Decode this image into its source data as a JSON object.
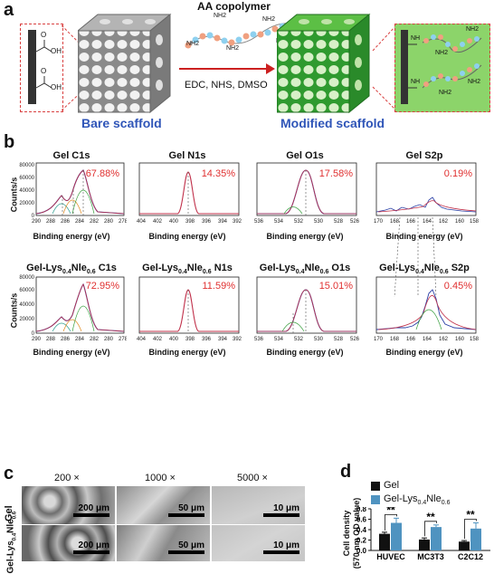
{
  "panel_a": {
    "label": "a",
    "copolymer_title": "AA copolymer",
    "reagents": "EDC, NHS, DMSO",
    "bare_caption": "Bare scaffold",
    "modified_caption": "Modified scaffold",
    "nh2": "NH2",
    "oh": "OH",
    "o": "O",
    "nh": "NH"
  },
  "panel_b": {
    "label": "b",
    "ylabel": "Counts/s",
    "xlabel": "Binding energy (eV)",
    "row1": [
      {
        "title": "Gel C1s",
        "pct": "67.88%",
        "ticks": [
          "290",
          "288",
          "286",
          "284",
          "282",
          "280",
          "278"
        ],
        "yticks": [
          "0",
          "20000",
          "40000",
          "60000",
          "80000"
        ]
      },
      {
        "title": "Gel N1s",
        "pct": "14.35%",
        "ticks": [
          "404",
          "402",
          "400",
          "398",
          "396",
          "394",
          "392"
        ]
      },
      {
        "title": "Gel O1s",
        "pct": "17.58%",
        "ticks": [
          "536",
          "534",
          "532",
          "530",
          "528",
          "526"
        ]
      },
      {
        "title": "Gel S2p",
        "pct": "0.19%",
        "ticks": [
          "170",
          "168",
          "166",
          "164",
          "162",
          "160",
          "158"
        ]
      }
    ],
    "row2": [
      {
        "title_pre": "Gel-Lys",
        "sub1": "0.4",
        "mid": "Nle",
        "sub2": "0.6",
        "title_post": " C1s",
        "pct": "72.95%",
        "ticks": [
          "290",
          "288",
          "286",
          "284",
          "282",
          "280",
          "278"
        ],
        "yticks": [
          "0",
          "20000",
          "40000",
          "60000",
          "80000"
        ]
      },
      {
        "title_pre": "Gel-Lys",
        "sub1": "0.4",
        "mid": "Nle",
        "sub2": "0.6",
        "title_post": " N1s",
        "pct": "11.59%",
        "ticks": [
          "404",
          "402",
          "400",
          "398",
          "396",
          "394",
          "392"
        ]
      },
      {
        "title_pre": "Gel-Lys",
        "sub1": "0.4",
        "mid": "Nle",
        "sub2": "0.6",
        "title_post": " O1s",
        "pct": "15.01%",
        "ticks": [
          "536",
          "534",
          "532",
          "530",
          "528",
          "526"
        ]
      },
      {
        "title_pre": "Gel-Lys",
        "sub1": "0.4",
        "mid": "Nle",
        "sub2": "0.6",
        "title_post": " S2p",
        "pct": "0.45%",
        "ticks": [
          "170",
          "168",
          "166",
          "164",
          "162",
          "160",
          "158"
        ]
      }
    ]
  },
  "panel_c": {
    "label": "c",
    "mags": [
      "200 ×",
      "1000 ×",
      "5000 ×"
    ],
    "row_gel": "Gel",
    "row_mod_pre": "Gel-Lys",
    "row_mod_sub1": "0.4",
    "row_mod_mid": "Nle",
    "row_mod_sub2": "0.6",
    "scalebars": [
      "200 μm",
      "50 μm",
      "10 μm",
      "200 μm",
      "50 μm",
      "10 μm"
    ]
  },
  "panel_d": {
    "label": "d",
    "legend_gel": "Gel",
    "legend_mod_pre": "Gel-Lys",
    "legend_mod_sub1": "0.4",
    "legend_mod_mid": "Nle",
    "legend_mod_sub2": "0.6",
    "ylabel_1": "Cell density",
    "ylabel_2": "(570 nm OD value)",
    "sig": "**"
  },
  "chart_data": {
    "type": "bar",
    "categories": [
      "HUVEC",
      "MC3T3",
      "C2C12"
    ],
    "series": [
      {
        "name": "Gel",
        "values": [
          0.32,
          0.21,
          0.17
        ],
        "errors": [
          0.03,
          0.03,
          0.02
        ],
        "color": "#111111"
      },
      {
        "name": "Gel-Lys0.4Nle0.6",
        "values": [
          0.53,
          0.45,
          0.42
        ],
        "errors": [
          0.09,
          0.04,
          0.11
        ],
        "color": "#4f93c0"
      }
    ],
    "ylim": [
      0,
      0.8
    ],
    "yticks": [
      "0.0",
      "0.2",
      "0.4",
      "0.6",
      "0.8"
    ],
    "significance": [
      "**",
      "**",
      "**"
    ]
  },
  "colors": {
    "accent_blue": "#2f55b8",
    "pct_red": "#e03030",
    "arrow_red": "#cc2020",
    "green": "#3daa35"
  }
}
